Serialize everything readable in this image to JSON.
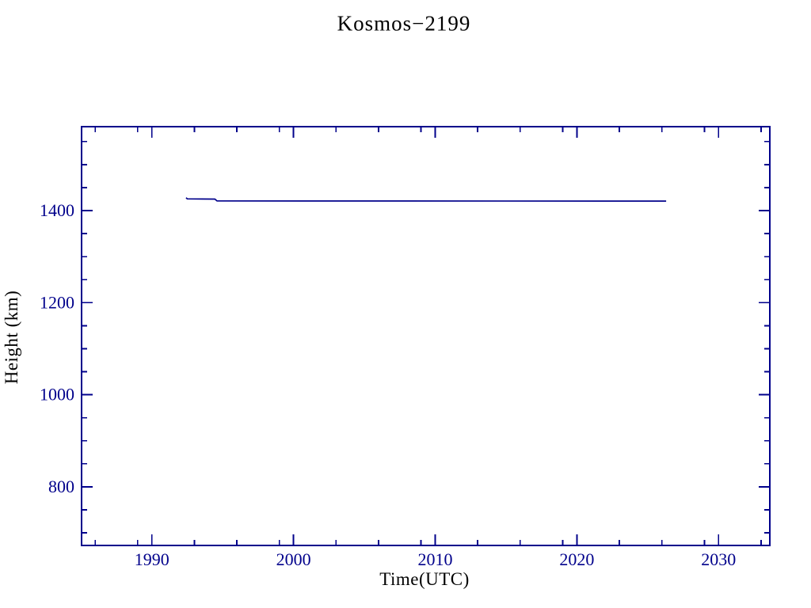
{
  "page": {
    "background_color": "#ffffff",
    "ink_color": "#00008B"
  },
  "chart_data": {
    "type": "line",
    "title": "Kosmos−2199",
    "xlabel": "Time(UTC)",
    "ylabel": "Height (km)",
    "xlim": [
      1985.04,
      2033.62
    ],
    "ylim": [
      672.6,
      1582.3
    ],
    "grid": false,
    "legend": null,
    "frame_ticks_mirrored": true,
    "x_major_ticks": [
      1990,
      2000,
      2010,
      2020,
      2030
    ],
    "x_major_tick_labels": [
      "1990",
      "2000",
      "2010",
      "2020",
      "2030"
    ],
    "x_minor_ticks": [
      1986,
      1989,
      1993,
      1996,
      1999,
      2003,
      2006,
      2009,
      2013,
      2016,
      2019,
      2023,
      2026,
      2029,
      2033
    ],
    "y_major_ticks": [
      800,
      1000,
      1200,
      1400
    ],
    "y_major_tick_labels": [
      "800",
      "1000",
      "1200",
      "1400"
    ],
    "y_minor_ticks": [
      700,
      750,
      850,
      900,
      950,
      1050,
      1100,
      1150,
      1250,
      1300,
      1350,
      1450,
      1500,
      1550
    ],
    "line_color": "#00008B",
    "series": [
      {
        "name": "mean-orbital-height",
        "points": [
          [
            1992.42,
            1428.0
          ],
          [
            1992.5,
            1425.5
          ],
          [
            1994.45,
            1425.0
          ],
          [
            1994.6,
            1421.0
          ],
          [
            2026.3,
            1420.6
          ]
        ]
      }
    ]
  }
}
